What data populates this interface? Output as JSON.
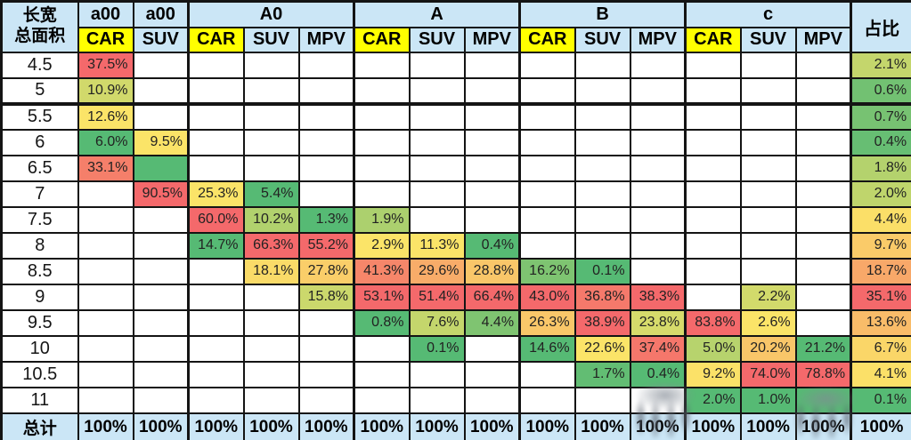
{
  "styles": {
    "header_bg": "#CBE6F6",
    "car_header_bg": "#FFFF00",
    "total_row_bg": "#CBE6F6",
    "border_color": "#141414",
    "scale_min_color": "#56BA74",
    "scale_mid_color": "#FBE468",
    "scale_max_color": "#F4696B"
  },
  "chart_data": {
    "type": "heatmap",
    "title": "",
    "corner": {
      "line1": "长宽",
      "line2": "总面积"
    },
    "share_header": "占比",
    "total_label": "总计",
    "color_scale": {
      "scope": "per-column",
      "min": "#56BA74",
      "mid": "#FBE468",
      "max": "#F4696B",
      "midpoint": "50th-percentile"
    },
    "groups": [
      {
        "label": "a00",
        "cols": [
          "CAR"
        ]
      },
      {
        "label": "a00",
        "cols": [
          "SUV"
        ]
      },
      {
        "label": "A0",
        "cols": [
          "CAR",
          "SUV",
          "MPV"
        ]
      },
      {
        "label": "A",
        "cols": [
          "CAR",
          "SUV",
          "MPV"
        ]
      },
      {
        "label": "B",
        "cols": [
          "CAR",
          "SUV",
          "MPV"
        ]
      },
      {
        "label": "c",
        "cols": [
          "CAR",
          "SUV",
          "MPV"
        ]
      }
    ],
    "col_keys": [
      "a00-CAR",
      "a00-SUV",
      "A0-CAR",
      "A0-SUV",
      "A0-MPV",
      "A-CAR",
      "A-SUV",
      "A-MPV",
      "B-CAR",
      "B-SUV",
      "B-MPV",
      "c-CAR",
      "c-SUV",
      "c-MPV"
    ],
    "rows": [
      {
        "label": "4.5",
        "thick_bottom": false,
        "cells": [
          {
            "t": "37.5%",
            "n": 37.5
          },
          null,
          null,
          null,
          null,
          null,
          null,
          null,
          null,
          null,
          null,
          null,
          null,
          null
        ],
        "share": {
          "t": "2.1%",
          "n": 2.1
        }
      },
      {
        "label": "5",
        "thick_bottom": true,
        "cells": [
          {
            "t": "10.9%",
            "n": 10.9
          },
          null,
          null,
          null,
          null,
          null,
          null,
          null,
          null,
          null,
          null,
          null,
          null,
          null
        ],
        "share": {
          "t": "0.6%",
          "n": 0.6
        }
      },
      {
        "label": "5.5",
        "thick_bottom": false,
        "cells": [
          {
            "t": "12.6%",
            "n": 12.6
          },
          null,
          null,
          null,
          null,
          null,
          null,
          null,
          null,
          null,
          null,
          null,
          null,
          null
        ],
        "share": {
          "t": "0.7%",
          "n": 0.7
        }
      },
      {
        "label": "6",
        "thick_bottom": false,
        "cells": [
          {
            "t": "6.0%",
            "n": 6.0
          },
          {
            "t": "9.5%",
            "n": 9.5
          },
          null,
          null,
          null,
          null,
          null,
          null,
          null,
          null,
          null,
          null,
          null,
          null
        ],
        "share": {
          "t": "0.4%",
          "n": 0.4
        }
      },
      {
        "label": "6.5",
        "thick_bottom": false,
        "cells": [
          {
            "t": "33.1%",
            "n": 33.1
          },
          {
            "t": "",
            "n": 0
          },
          null,
          null,
          null,
          null,
          null,
          null,
          null,
          null,
          null,
          null,
          null,
          null
        ],
        "share": {
          "t": "1.8%",
          "n": 1.8
        }
      },
      {
        "label": "7",
        "thick_bottom": false,
        "cells": [
          null,
          {
            "t": "90.5%",
            "n": 90.5
          },
          {
            "t": "25.3%",
            "n": 25.3
          },
          {
            "t": "5.4%",
            "n": 5.4
          },
          null,
          null,
          null,
          null,
          null,
          null,
          null,
          null,
          null,
          null
        ],
        "share": {
          "t": "2.0%",
          "n": 2.0
        }
      },
      {
        "label": "7.5",
        "thick_bottom": false,
        "cells": [
          null,
          null,
          {
            "t": "60.0%",
            "n": 60.0
          },
          {
            "t": "10.2%",
            "n": 10.2
          },
          {
            "t": "1.3%",
            "n": 1.3
          },
          {
            "t": "1.9%",
            "n": 1.9
          },
          null,
          null,
          null,
          null,
          null,
          null,
          null,
          null
        ],
        "share": {
          "t": "4.4%",
          "n": 4.4
        }
      },
      {
        "label": "8",
        "thick_bottom": false,
        "cells": [
          null,
          null,
          {
            "t": "14.7%",
            "n": 14.7
          },
          {
            "t": "66.3%",
            "n": 66.3
          },
          {
            "t": "55.2%",
            "n": 55.2
          },
          {
            "t": "2.9%",
            "n": 2.9
          },
          {
            "t": "11.3%",
            "n": 11.3
          },
          {
            "t": "0.4%",
            "n": 0.4
          },
          null,
          null,
          null,
          null,
          null,
          null
        ],
        "share": {
          "t": "9.7%",
          "n": 9.7
        }
      },
      {
        "label": "8.5",
        "thick_bottom": false,
        "cells": [
          null,
          null,
          null,
          {
            "t": "18.1%",
            "n": 18.1
          },
          {
            "t": "27.8%",
            "n": 27.8
          },
          {
            "t": "41.3%",
            "n": 41.3
          },
          {
            "t": "29.6%",
            "n": 29.6
          },
          {
            "t": "28.8%",
            "n": 28.8
          },
          {
            "t": "16.2%",
            "n": 16.2
          },
          {
            "t": "0.1%",
            "n": 0.1
          },
          null,
          null,
          null,
          null
        ],
        "share": {
          "t": "18.7%",
          "n": 18.7
        }
      },
      {
        "label": "9",
        "thick_bottom": false,
        "cells": [
          null,
          null,
          null,
          null,
          {
            "t": "15.8%",
            "n": 15.8
          },
          {
            "t": "53.1%",
            "n": 53.1
          },
          {
            "t": "51.4%",
            "n": 51.4
          },
          {
            "t": "66.4%",
            "n": 66.4
          },
          {
            "t": "43.0%",
            "n": 43.0
          },
          {
            "t": "36.8%",
            "n": 36.8
          },
          {
            "t": "38.3%",
            "n": 38.3
          },
          null,
          {
            "t": "2.2%",
            "n": 2.2
          },
          null
        ],
        "share": {
          "t": "35.1%",
          "n": 35.1
        }
      },
      {
        "label": "9.5",
        "thick_bottom": false,
        "cells": [
          null,
          null,
          null,
          null,
          null,
          {
            "t": "0.8%",
            "n": 0.8
          },
          {
            "t": "7.6%",
            "n": 7.6
          },
          {
            "t": "4.4%",
            "n": 4.4
          },
          {
            "t": "26.3%",
            "n": 26.3
          },
          {
            "t": "38.9%",
            "n": 38.9
          },
          {
            "t": "23.8%",
            "n": 23.8
          },
          {
            "t": "83.8%",
            "n": 83.8
          },
          {
            "t": "2.6%",
            "n": 2.6
          },
          null
        ],
        "share": {
          "t": "13.6%",
          "n": 13.6
        }
      },
      {
        "label": "10",
        "thick_bottom": false,
        "cells": [
          null,
          null,
          null,
          null,
          null,
          null,
          {
            "t": "0.1%",
            "n": 0.1
          },
          null,
          {
            "t": "14.6%",
            "n": 14.6
          },
          {
            "t": "22.6%",
            "n": 22.6
          },
          {
            "t": "37.4%",
            "n": 37.4
          },
          {
            "t": "5.0%",
            "n": 5.0
          },
          {
            "t": "20.2%",
            "n": 20.2
          },
          {
            "t": "21.2%",
            "n": 21.2
          }
        ],
        "share": {
          "t": "6.7%",
          "n": 6.7
        }
      },
      {
        "label": "10.5",
        "thick_bottom": false,
        "cells": [
          null,
          null,
          null,
          null,
          null,
          null,
          null,
          null,
          null,
          {
            "t": "1.7%",
            "n": 1.7
          },
          {
            "t": "0.4%",
            "n": 0.4
          },
          {
            "t": "9.2%",
            "n": 9.2
          },
          {
            "t": "74.0%",
            "n": 74.0
          },
          {
            "t": "78.8%",
            "n": 78.8
          }
        ],
        "share": {
          "t": "4.1%",
          "n": 4.1
        }
      },
      {
        "label": "11",
        "thick_bottom": false,
        "cells": [
          null,
          null,
          null,
          null,
          null,
          null,
          null,
          null,
          null,
          null,
          null,
          {
            "t": "2.0%",
            "n": 2.0
          },
          {
            "t": "1.0%",
            "n": 1.0
          },
          {
            "t": "",
            "fill": "min"
          }
        ],
        "share": {
          "t": "0.1%",
          "n": 0.1
        }
      }
    ],
    "total_row": {
      "label": "总计",
      "cells": [
        "100%",
        "100%",
        "100%",
        "100%",
        "100%",
        "100%",
        "100%",
        "100%",
        "100%",
        "100%",
        "100%",
        "100%",
        "100%",
        "100%"
      ],
      "share": "100%"
    }
  }
}
